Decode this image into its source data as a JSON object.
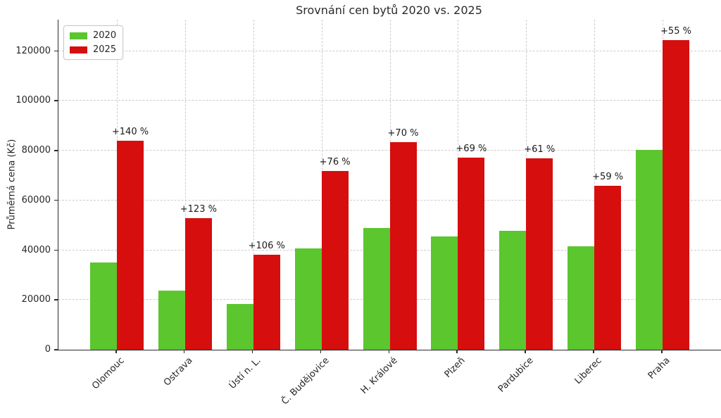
{
  "chart_data": {
    "type": "bar",
    "title": "Srovnání cen bytů 2020 vs. 2025",
    "xlabel": "",
    "ylabel": "Průměrná cena (Kč)",
    "categories": [
      "Olomouc",
      "Ostrava",
      "Ústí n. L.",
      "Č. Budějovice",
      "H. Králové",
      "Plzeň",
      "Pardubice",
      "Liberec",
      "Praha"
    ],
    "series": [
      {
        "name": "2020",
        "color": "#5BC62E",
        "values": [
          35000,
          23700,
          18500,
          40800,
          49000,
          45600,
          47700,
          41500,
          80300
        ]
      },
      {
        "name": "2025",
        "color": "#D60E0E",
        "values": [
          84000,
          52900,
          38100,
          71800,
          83300,
          77100,
          76800,
          66000,
          124500
        ]
      }
    ],
    "annotations": [
      "+140 %",
      "+123 %",
      "+106 %",
      "+76 %",
      "+70 %",
      "+69 %",
      "+61 %",
      "+59 %",
      "+55 %"
    ],
    "y_ticks": [
      0,
      20000,
      40000,
      60000,
      80000,
      100000,
      120000
    ],
    "y_tick_labels": [
      "0",
      "20000",
      "40000",
      "60000",
      "80000",
      "100000",
      "120000"
    ],
    "ylim": [
      0,
      132600
    ],
    "grid": "dashed both axes",
    "legend_position": "upper left"
  },
  "style": {
    "bar_color_2020": "#5BC62E",
    "bar_color_2025": "#D60E0E",
    "grid_color": "#cccccc",
    "spine_color": "#2b2b2b",
    "text_color": "#262626",
    "background": "#ffffff"
  }
}
